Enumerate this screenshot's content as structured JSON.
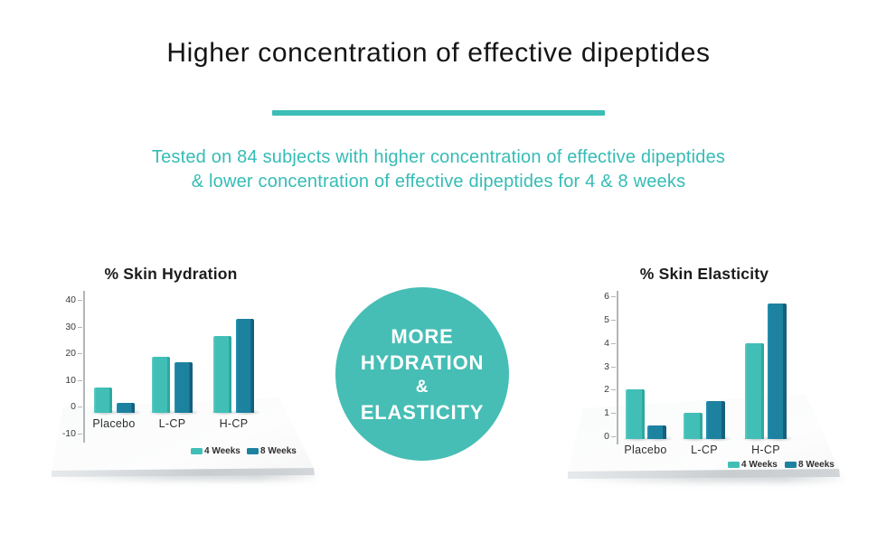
{
  "header": {
    "title": "Higher concentration of effective dipeptides",
    "subtitle_line1": "Tested on 84 subjects with higher concentration of effective dipeptides",
    "subtitle_line2": "& lower concentration of effective dipeptides for 4 & 8 weeks"
  },
  "badge": {
    "lines": [
      "MORE",
      "HYDRATION",
      "&",
      "ELASTICITY"
    ]
  },
  "colors": {
    "accent_teal": "#3CBDB5",
    "subtitle_teal": "#35BCB6",
    "badge_teal": "#46BEB5",
    "series_4_weeks": "#41BFB7",
    "series_8_weeks": "#1D81A0",
    "title_text": "#141414",
    "axis_gray": "#B3B6B9",
    "platform_gray": "#C9CDD0"
  },
  "chart_data": [
    {
      "type": "bar",
      "title": "% Skin Hydration",
      "categories": [
        "Placebo",
        "L-CP",
        "H-CP"
      ],
      "series": [
        {
          "name": "4 Weeks",
          "color": "#41BFB7",
          "values": [
            7,
            18.5,
            26.5
          ]
        },
        {
          "name": "8 Weeks",
          "color": "#1D81A0",
          "values": [
            1.5,
            16.5,
            33
          ]
        }
      ],
      "ylim": [
        -10,
        40
      ],
      "yticks": [
        40,
        30,
        20,
        10,
        0,
        -10
      ],
      "xlabel": "",
      "ylabel": "",
      "grid": false,
      "legend_position": "bottom-right"
    },
    {
      "type": "bar",
      "title": "% Skin Elasticity",
      "categories": [
        "Placebo",
        "L-CP",
        "H-CP"
      ],
      "series": [
        {
          "name": "4 Weeks",
          "color": "#41BFB7",
          "values": [
            2,
            1,
            4
          ]
        },
        {
          "name": "8 Weeks",
          "color": "#1D81A0",
          "values": [
            0.45,
            1.5,
            5.7
          ]
        }
      ],
      "ylim": [
        0,
        6
      ],
      "yticks": [
        6,
        5,
        4,
        3,
        2,
        1,
        0
      ],
      "xlabel": "",
      "ylabel": "",
      "grid": false,
      "legend_position": "bottom-right"
    }
  ]
}
